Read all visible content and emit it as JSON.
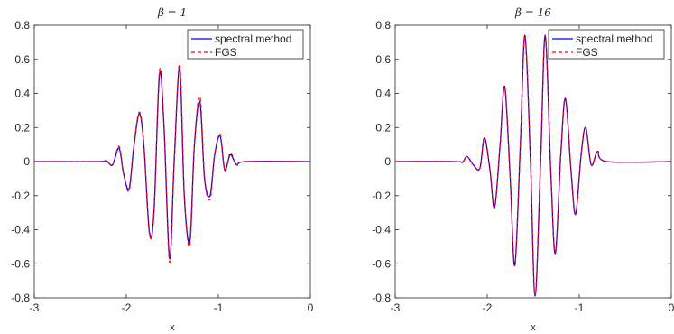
{
  "chart_data": [
    {
      "type": "line",
      "title": "β = 1",
      "xlabel": "x",
      "ylabel": "",
      "xlim": [
        -3,
        0
      ],
      "ylim": [
        -0.8,
        0.8
      ],
      "xticks": [
        -3,
        -2,
        -1,
        0
      ],
      "xtick_labels": [
        "-3",
        "-2",
        "-1",
        "0"
      ],
      "yticks": [
        -0.8,
        -0.6,
        -0.4,
        -0.2,
        0,
        0.2,
        0.4,
        0.6,
        0.8
      ],
      "ytick_labels": [
        "-0.8",
        "-0.6",
        "-0.4",
        "-0.2",
        "0",
        "0.2",
        "0.4",
        "0.6",
        "0.8"
      ],
      "grid": false,
      "legend_position": "top-right",
      "series": [
        {
          "name": "spectral method",
          "color": "#0000ff",
          "style": "solid",
          "x": [
            -3.0,
            -2.3,
            -2.22,
            -2.15,
            -2.08,
            -2.03,
            -1.97,
            -1.92,
            -1.86,
            -1.81,
            -1.75,
            -1.7,
            -1.64,
            -1.59,
            -1.53,
            -1.48,
            -1.42,
            -1.37,
            -1.31,
            -1.26,
            -1.2,
            -1.15,
            -1.09,
            -1.04,
            -0.98,
            -0.93,
            -0.87,
            -0.8,
            -0.7,
            0.0
          ],
          "y": [
            0.0,
            0.0,
            0.005,
            -0.02,
            0.08,
            -0.07,
            -0.16,
            0.08,
            0.28,
            0.1,
            -0.41,
            -0.3,
            0.51,
            0.2,
            -0.57,
            0.0,
            0.55,
            -0.2,
            -0.47,
            0.1,
            0.35,
            -0.1,
            -0.2,
            0.04,
            0.15,
            -0.05,
            0.04,
            -0.02,
            0.0,
            0.0
          ]
        },
        {
          "name": "FGS",
          "color": "#ff0000",
          "style": "dashed",
          "x": [
            -3.0,
            -2.3,
            -2.22,
            -2.15,
            -2.08,
            -2.03,
            -1.97,
            -1.92,
            -1.86,
            -1.81,
            -1.75,
            -1.7,
            -1.64,
            -1.59,
            -1.53,
            -1.48,
            -1.42,
            -1.37,
            -1.31,
            -1.26,
            -1.2,
            -1.15,
            -1.09,
            -1.04,
            -0.98,
            -0.93,
            -0.87,
            -0.8,
            -0.7,
            0.0
          ],
          "y": [
            0.0,
            0.0,
            0.008,
            -0.02,
            0.09,
            -0.07,
            -0.17,
            0.08,
            0.29,
            0.1,
            -0.42,
            -0.3,
            0.53,
            0.2,
            -0.59,
            0.0,
            0.57,
            -0.2,
            -0.49,
            0.1,
            0.38,
            -0.1,
            -0.22,
            0.04,
            0.16,
            -0.05,
            0.05,
            -0.02,
            0.0,
            0.0
          ]
        }
      ]
    },
    {
      "type": "line",
      "title": "β = 16",
      "xlabel": "x",
      "ylabel": "",
      "xlim": [
        -3,
        0
      ],
      "ylim": [
        -0.8,
        0.8
      ],
      "xticks": [
        -3,
        -2,
        -1,
        0
      ],
      "xtick_labels": [
        "-3",
        "-2",
        "-1",
        "0"
      ],
      "yticks": [
        -0.8,
        -0.6,
        -0.4,
        -0.2,
        0,
        0.2,
        0.4,
        0.6,
        0.8
      ],
      "ytick_labels": [
        "-0.8",
        "-0.6",
        "-0.4",
        "-0.2",
        "0",
        "0.2",
        "0.4",
        "0.6",
        "0.8"
      ],
      "grid": false,
      "legend_position": "top-right",
      "series": [
        {
          "name": "spectral method",
          "color": "#0000ff",
          "style": "solid",
          "x": [
            -3.0,
            -2.35,
            -2.27,
            -2.22,
            -2.15,
            -2.08,
            -2.03,
            -1.97,
            -1.92,
            -1.86,
            -1.81,
            -1.75,
            -1.7,
            -1.64,
            -1.59,
            -1.53,
            -1.48,
            -1.42,
            -1.37,
            -1.31,
            -1.26,
            -1.2,
            -1.15,
            -1.09,
            -1.04,
            -0.98,
            -0.93,
            -0.87,
            -0.8,
            -0.7,
            0.0
          ],
          "y": [
            0.0,
            0.0,
            -0.005,
            0.03,
            -0.02,
            -0.04,
            0.14,
            -0.05,
            -0.27,
            0.1,
            0.44,
            -0.1,
            -0.61,
            0.1,
            0.74,
            0.0,
            -0.79,
            0.0,
            0.74,
            -0.05,
            -0.54,
            0.05,
            0.37,
            -0.05,
            -0.31,
            0.04,
            0.2,
            -0.02,
            0.06,
            0.0,
            0.0
          ]
        },
        {
          "name": "FGS",
          "color": "#ff0000",
          "style": "dashed",
          "x": [
            -3.0,
            -2.35,
            -2.27,
            -2.22,
            -2.15,
            -2.08,
            -2.03,
            -1.97,
            -1.92,
            -1.86,
            -1.81,
            -1.75,
            -1.7,
            -1.64,
            -1.59,
            -1.53,
            -1.48,
            -1.42,
            -1.37,
            -1.31,
            -1.26,
            -1.2,
            -1.15,
            -1.09,
            -1.04,
            -0.98,
            -0.93,
            -0.87,
            -0.8,
            -0.7,
            0.0
          ],
          "y": [
            0.0,
            0.0,
            -0.005,
            0.03,
            -0.02,
            -0.04,
            0.14,
            -0.05,
            -0.27,
            0.1,
            0.44,
            -0.1,
            -0.61,
            0.1,
            0.74,
            0.0,
            -0.79,
            0.0,
            0.74,
            -0.05,
            -0.54,
            0.05,
            0.37,
            -0.05,
            -0.31,
            0.04,
            0.2,
            -0.02,
            0.06,
            0.0,
            0.0
          ]
        }
      ]
    }
  ]
}
